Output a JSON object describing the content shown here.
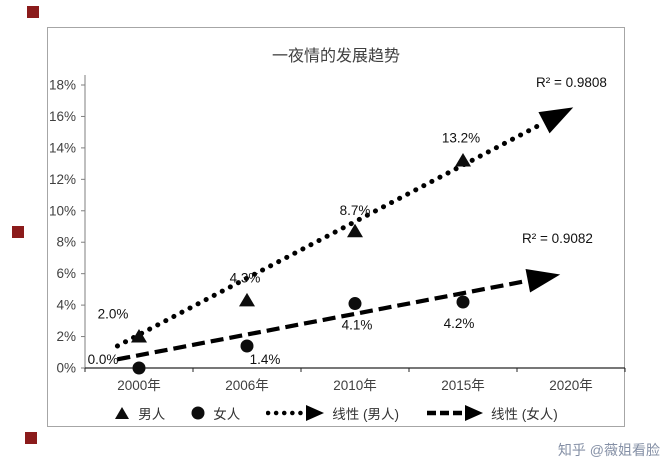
{
  "watermark": "知乎 @薇姐看脸",
  "chart_data": {
    "type": "scatter",
    "title": "一夜情的发展趋势",
    "categories": [
      "2000年",
      "2006年",
      "2010年",
      "2015年",
      "2020年"
    ],
    "y_ticks": [
      "18%",
      "16%",
      "14%",
      "12%",
      "10%",
      "8%",
      "6%",
      "4%",
      "2%",
      "0%"
    ],
    "ylim": [
      0,
      18
    ],
    "y_tick_step": 2,
    "grid": false,
    "legend_position": "bottom",
    "series": [
      {
        "name": "男人",
        "marker": "triangle",
        "values": [
          2.0,
          4.3,
          8.7,
          13.2
        ],
        "labels": [
          "2.0%",
          "4.3%",
          "8.7%",
          "13.2%"
        ],
        "label_offsets": [
          [
            -26,
            -22
          ],
          [
            -2,
            -22
          ],
          [
            0,
            -20
          ],
          [
            -2,
            -22
          ]
        ]
      },
      {
        "name": "女人",
        "marker": "circle",
        "values": [
          0.0,
          1.4,
          4.1,
          4.2
        ],
        "labels": [
          "0.0%",
          "1.4%",
          "4.1%",
          "4.2%"
        ],
        "label_offsets": [
          [
            -36,
            -8
          ],
          [
            18,
            14
          ],
          [
            2,
            22
          ],
          [
            -4,
            22
          ]
        ]
      }
    ],
    "trendlines": [
      {
        "name": "线性 (男人)",
        "style": "dotted",
        "r2_label": "R² = 0.9808",
        "start": [
          -0.2,
          1.4
        ],
        "end": [
          3.75,
          15.6
        ]
      },
      {
        "name": "线性 (女人)",
        "style": "dashed",
        "r2_label": "R² = 0.9082",
        "start": [
          -0.2,
          0.55
        ],
        "end": [
          3.6,
          5.55
        ]
      }
    ],
    "legend": [
      "男人",
      "女人",
      "线性 (男人)",
      "线性 (女人)"
    ]
  }
}
